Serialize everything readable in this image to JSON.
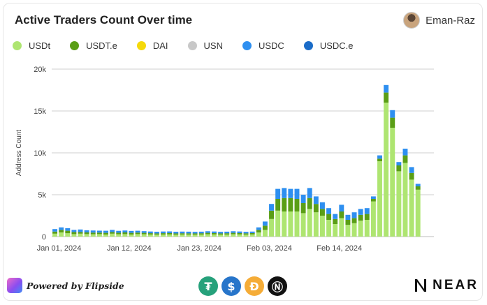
{
  "title": "Active Traders Count Over time",
  "author": {
    "name": "Eman-Raz",
    "avatar_icon": "user-avatar-icon"
  },
  "footer": {
    "powered_by": "Powered by Flipside",
    "coin_icons": [
      "tether-icon",
      "usdc-icon",
      "dai-icon",
      "near-icon"
    ],
    "brand": "NEAR"
  },
  "chart_data": {
    "type": "bar",
    "stacked": true,
    "ylabel": "Address Count",
    "ylim": [
      0,
      20000
    ],
    "yticks": [
      0,
      5000,
      10000,
      15000,
      20000
    ],
    "ytick_labels": [
      "0",
      "5k",
      "10k",
      "15k",
      "20k"
    ],
    "xtick_labels": [
      "Jan 01, 2024",
      "Jan 12, 2024",
      "Jan 23, 2024",
      "Feb 03, 2024",
      "Feb 14, 2024"
    ],
    "xtick_indices": [
      0,
      11,
      22,
      33,
      44
    ],
    "grid": true,
    "legend_position": "top-left",
    "categories": [
      "2024-01-01",
      "2024-01-02",
      "2024-01-03",
      "2024-01-04",
      "2024-01-05",
      "2024-01-06",
      "2024-01-07",
      "2024-01-08",
      "2024-01-09",
      "2024-01-10",
      "2024-01-11",
      "2024-01-12",
      "2024-01-13",
      "2024-01-14",
      "2024-01-15",
      "2024-01-16",
      "2024-01-17",
      "2024-01-18",
      "2024-01-19",
      "2024-01-20",
      "2024-01-21",
      "2024-01-22",
      "2024-01-23",
      "2024-01-24",
      "2024-01-25",
      "2024-01-26",
      "2024-01-27",
      "2024-01-28",
      "2024-01-29",
      "2024-01-30",
      "2024-01-31",
      "2024-02-01",
      "2024-02-02",
      "2024-02-03",
      "2024-02-04",
      "2024-02-05",
      "2024-02-06",
      "2024-02-07",
      "2024-02-08",
      "2024-02-09",
      "2024-02-10",
      "2024-02-11",
      "2024-02-12",
      "2024-02-13",
      "2024-02-14",
      "2024-02-15",
      "2024-02-16",
      "2024-02-17",
      "2024-02-18",
      "2024-02-19",
      "2024-02-20",
      "2024-02-21",
      "2024-02-22",
      "2024-02-23",
      "2024-02-24",
      "2024-02-25",
      "2024-02-26",
      "2024-02-27",
      "2024-02-28",
      "2024-02-29"
    ],
    "series": [
      {
        "name": "USDt",
        "color": "#aee571",
        "values": [
          350,
          500,
          400,
          300,
          350,
          300,
          280,
          300,
          250,
          350,
          280,
          300,
          250,
          300,
          280,
          250,
          230,
          250,
          260,
          230,
          250,
          240,
          230,
          250,
          280,
          260,
          230,
          250,
          280,
          260,
          240,
          260,
          500,
          800,
          2100,
          3100,
          3000,
          3000,
          3000,
          2800,
          3300,
          2900,
          2500,
          2000,
          1500,
          2200,
          1400,
          1600,
          1900,
          2000,
          4200,
          9000,
          16000,
          13000,
          7800,
          8800,
          6800,
          5600,
          0,
          0
        ]
      },
      {
        "name": "USDT.e",
        "color": "#5a9e16",
        "values": [
          250,
          300,
          300,
          250,
          200,
          200,
          200,
          180,
          200,
          200,
          180,
          200,
          200,
          180,
          170,
          160,
          150,
          160,
          160,
          150,
          150,
          150,
          150,
          150,
          170,
          160,
          150,
          150,
          170,
          160,
          150,
          160,
          300,
          500,
          1000,
          1400,
          1600,
          1600,
          1500,
          1200,
          1300,
          1000,
          800,
          700,
          600,
          800,
          600,
          600,
          700,
          700,
          300,
          300,
          1200,
          1200,
          700,
          900,
          800,
          400,
          0,
          0
        ]
      },
      {
        "name": "DAI",
        "color": "#f5d90a",
        "values": [
          0,
          0,
          0,
          0,
          0,
          0,
          0,
          0,
          0,
          0,
          0,
          0,
          0,
          0,
          0,
          0,
          0,
          0,
          0,
          0,
          0,
          0,
          0,
          0,
          0,
          0,
          0,
          0,
          0,
          0,
          0,
          0,
          0,
          0,
          0,
          0,
          0,
          0,
          0,
          0,
          0,
          0,
          0,
          0,
          0,
          0,
          0,
          0,
          0,
          0,
          0,
          0,
          0,
          0,
          0,
          0,
          0,
          0,
          0,
          0
        ]
      },
      {
        "name": "USN",
        "color": "#c8c8c8",
        "values": [
          0,
          0,
          0,
          0,
          0,
          0,
          0,
          0,
          0,
          0,
          0,
          0,
          0,
          0,
          0,
          0,
          0,
          0,
          0,
          0,
          0,
          0,
          0,
          0,
          0,
          0,
          0,
          0,
          0,
          0,
          0,
          0,
          0,
          0,
          0,
          0,
          0,
          0,
          0,
          0,
          0,
          0,
          0,
          0,
          0,
          0,
          0,
          0,
          0,
          0,
          0,
          0,
          0,
          0,
          0,
          0,
          0,
          0,
          0,
          0
        ]
      },
      {
        "name": "USDC",
        "color": "#2e8ff0",
        "values": [
          300,
          300,
          300,
          250,
          300,
          250,
          250,
          230,
          250,
          250,
          230,
          230,
          230,
          220,
          200,
          200,
          200,
          200,
          200,
          200,
          200,
          200,
          190,
          190,
          190,
          190,
          190,
          190,
          190,
          190,
          180,
          180,
          300,
          500,
          800,
          1200,
          1200,
          1100,
          1200,
          1000,
          1200,
          900,
          800,
          700,
          600,
          800,
          600,
          700,
          700,
          700,
          300,
          400,
          900,
          900,
          400,
          800,
          700,
          300,
          0,
          0
        ]
      },
      {
        "name": "USDC.e",
        "color": "#1a6cc8",
        "values": [
          0,
          0,
          0,
          0,
          0,
          0,
          0,
          0,
          0,
          0,
          0,
          0,
          0,
          0,
          0,
          0,
          0,
          0,
          0,
          0,
          0,
          0,
          0,
          0,
          0,
          0,
          0,
          0,
          0,
          0,
          0,
          0,
          0,
          0,
          0,
          0,
          0,
          0,
          0,
          0,
          0,
          0,
          0,
          0,
          0,
          0,
          0,
          0,
          0,
          0,
          0,
          0,
          0,
          0,
          0,
          0,
          0,
          0,
          0,
          0
        ]
      }
    ]
  }
}
